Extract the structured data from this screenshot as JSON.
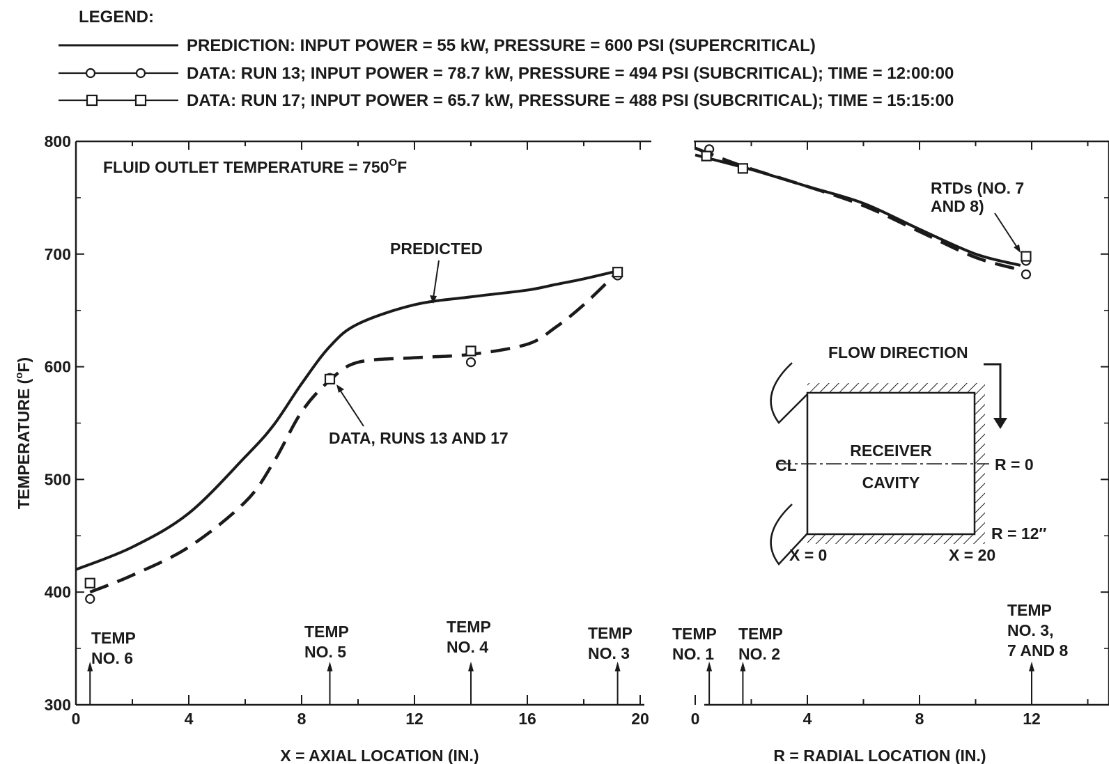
{
  "chart_data": {
    "type": "line",
    "legend": {
      "title": "LEGEND:",
      "placement": "top-left",
      "entries": [
        {
          "marker": "none",
          "line": "solid",
          "label": "PREDICTION:  INPUT POWER = 55 kW, PRESSURE = 600 PSI (SUPERCRITICAL)"
        },
        {
          "marker": "circle",
          "line": "solid",
          "label": "DATA:  RUN 13;  INPUT POWER = 78.7 kW, PRESSURE = 494 PSI (SUBCRITICAL); TIME = 12:00:00"
        },
        {
          "marker": "square",
          "line": "solid",
          "label": "DATA:  RUN 17;  INPUT POWER = 65.7 kW, PRESSURE = 488 PSI (SUBCRITICAL); TIME = 15:15:00"
        }
      ]
    },
    "ylabel": "TEMPERATURE (°F)",
    "ylabel_parts": {
      "pre": "TEMPERATURE (",
      "sup": "o",
      "post": "F)"
    },
    "ylim": [
      300,
      800
    ],
    "yticks": [
      300,
      400,
      500,
      600,
      700,
      800
    ],
    "grid": false,
    "panels": [
      {
        "xlabel": "X = AXIAL LOCATION (IN.)",
        "xlim": [
          0,
          20
        ],
        "xticks": [
          0,
          4,
          8,
          12,
          16,
          20
        ],
        "series": [
          {
            "name": "PREDICTED",
            "style": "solid",
            "x": [
              0,
              2,
              4,
              6,
              7,
              8,
              9,
              10,
              12,
              14,
              16,
              17,
              18,
              19.2
            ],
            "y": [
              420,
              440,
              470,
              520,
              548,
              585,
              618,
              638,
              655,
              662,
              668,
              673,
              678,
              685
            ]
          },
          {
            "name": "DATA, RUNS 13 AND 17",
            "style": "dashed",
            "x": [
              0.5,
              2,
              4,
              6,
              7,
              8,
              9,
              10,
              12,
              14,
              16,
              17,
              18,
              19.2
            ],
            "y": [
              400,
              415,
              440,
              480,
              515,
              560,
              588,
              604,
              608,
              611,
              620,
              635,
              655,
              684
            ]
          },
          {
            "name": "RUN 13",
            "marker": "circle",
            "x": [
              0.5,
              9,
              14,
              19.2
            ],
            "y": [
              394,
              590,
              604,
              681
            ]
          },
          {
            "name": "RUN 17",
            "marker": "square",
            "x": [
              0.5,
              9,
              14,
              19.2
            ],
            "y": [
              408,
              589,
              614,
              684
            ]
          }
        ],
        "annotations": [
          {
            "text": "FLUID OUTLET TEMPERATURE = 750",
            "sup": "O",
            "tail": "F"
          },
          {
            "text": "PREDICTED"
          },
          {
            "text": "DATA, RUNS 13 AND 17"
          },
          {
            "lines": [
              "TEMP",
              "NO. 6"
            ],
            "x": 0.5
          },
          {
            "lines": [
              "TEMP",
              "NO. 5"
            ],
            "x": 9
          },
          {
            "lines": [
              "TEMP",
              "NO. 4"
            ],
            "x": 14
          },
          {
            "lines": [
              "TEMP",
              "NO. 3"
            ],
            "x": 19.2
          }
        ]
      },
      {
        "xlabel": "R = RADIAL LOCATION (IN.)",
        "xlim": [
          0,
          14
        ],
        "xticks": [
          0,
          4,
          8,
          12
        ],
        "series": [
          {
            "name": "PREDICTED",
            "style": "solid",
            "x": [
              0,
              2,
              4,
              6,
              8,
              10,
              11.6
            ],
            "y": [
              788,
              775,
              760,
              745,
              722,
              700,
              690
            ]
          },
          {
            "name": "DATA, RUNS 13 AND 17",
            "style": "dashed",
            "x": [
              0,
              1.7,
              4,
              6,
              8,
              10,
              11.6
            ],
            "y": [
              794,
              778,
              760,
              743,
              720,
              697,
              686
            ]
          },
          {
            "name": "RUN 13",
            "marker": "circle",
            "x": [
              0.5,
              1.7,
              11.8,
              11.8
            ],
            "y": [
              793,
              776,
              694,
              682
            ]
          },
          {
            "name": "RUN 17",
            "marker": "square",
            "x": [
              0.4,
              1.7,
              11.8
            ],
            "y": [
              787,
              776,
              698
            ]
          }
        ],
        "annotations": [
          {
            "lines": [
              "RTDs (NO. 7",
              "AND 8)"
            ]
          },
          {
            "lines": [
              "TEMP",
              "NO. 1"
            ],
            "x": 0.5
          },
          {
            "lines": [
              "TEMP",
              "NO. 2"
            ],
            "x": 1.7
          },
          {
            "lines": [
              "TEMP",
              "NO. 3,",
              "7 AND 8"
            ],
            "x": 12
          }
        ]
      }
    ]
  },
  "inset": {
    "flow_direction": "FLOW DIRECTION",
    "receiver": "RECEIVER",
    "cavity": "CAVITY",
    "centerline": "CL",
    "r0": "R = 0",
    "r12": "R = 12″",
    "x0": "X = 0",
    "x20": "X = 20"
  }
}
